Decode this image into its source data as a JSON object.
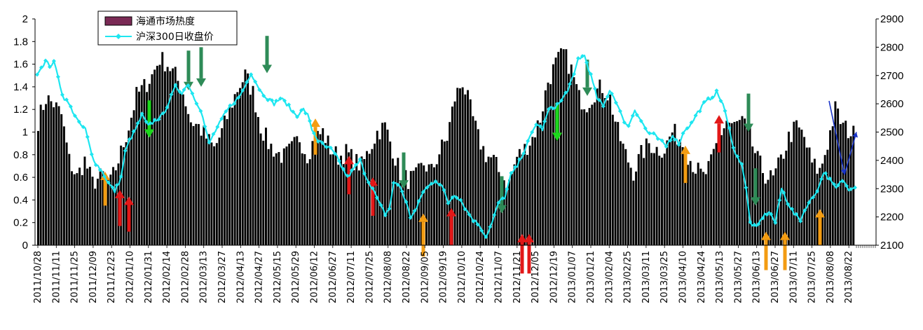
{
  "chart_data": {
    "type": "bar-line",
    "title": "",
    "legend": {
      "placement": "top-left",
      "entries": [
        {
          "label": "海通市场热度",
          "kind": "bar",
          "color": "#7a2a55"
        },
        {
          "label": "沪深300日收盘价",
          "kind": "line",
          "color": "#1ee6f0"
        }
      ]
    },
    "left_axis": {
      "min": 0,
      "max": 2,
      "ticks": [
        "0",
        "0.2",
        "0.4",
        "0.6",
        "0.8",
        "1",
        "1.2",
        "1.4",
        "1.6",
        "1.8",
        "2"
      ]
    },
    "right_axis": {
      "min": 2100,
      "max": 2900,
      "ticks": [
        "2100",
        "2200",
        "2300",
        "2400",
        "2500",
        "2600",
        "2700",
        "2800",
        "2900"
      ]
    },
    "x_labels": [
      "2011/10/28",
      "2011/11/11",
      "2011/11/25",
      "2011/12/09",
      "2011/12/23",
      "2012/01/10",
      "2012/01/31",
      "2012/02/14",
      "2012/02/28",
      "2012/03/13",
      "2012/03/27",
      "2012/04/13",
      "2012/04/27",
      "2012/05/15",
      "2012/05/29",
      "2012/06/12",
      "2012/06/27",
      "2012/07/11",
      "2012/07/25",
      "2012/08/08",
      "2012/08/22",
      "2012/09/05",
      "2012/09/19",
      "2012/10/10",
      "2012/10/24",
      "2012/11/07",
      "2012/11/21",
      "2012/12/05",
      "2012/12/19",
      "2013/01/07",
      "2013/01/21",
      "2013/02/04",
      "2013/02/25",
      "2013/03/11",
      "2013/03/25",
      "2013/04/10",
      "2013/04/24",
      "2013/05/13",
      "2013/05/27",
      "2013/06/13",
      "2013/06/27",
      "2013/07/11",
      "2013/07/25",
      "2013/08/08",
      "2013/08/22"
    ],
    "heat_anchors": [
      [
        0,
        1.1
      ],
      [
        3,
        1.3
      ],
      [
        6,
        1.25
      ],
      [
        9,
        1.15
      ],
      [
        12,
        0.75
      ],
      [
        15,
        0.6
      ],
      [
        18,
        0.75
      ],
      [
        21,
        0.55
      ],
      [
        25,
        0.62
      ],
      [
        28,
        0.55
      ],
      [
        32,
        0.82
      ],
      [
        35,
        1.05
      ],
      [
        38,
        1.32
      ],
      [
        41,
        1.4
      ],
      [
        44,
        1.5
      ],
      [
        47,
        1.65
      ],
      [
        50,
        1.6
      ],
      [
        53,
        1.5
      ],
      [
        56,
        1.35
      ],
      [
        59,
        1.1
      ],
      [
        62,
        1.05
      ],
      [
        65,
        0.95
      ],
      [
        68,
        0.85
      ],
      [
        71,
        1.0
      ],
      [
        74,
        1.2
      ],
      [
        77,
        1.38
      ],
      [
        80,
        1.5
      ],
      [
        83,
        1.35
      ],
      [
        86,
        1.05
      ],
      [
        89,
        0.9
      ],
      [
        92,
        0.82
      ],
      [
        95,
        0.78
      ],
      [
        98,
        0.85
      ],
      [
        101,
        0.95
      ],
      [
        104,
        0.8
      ],
      [
        107,
        0.95
      ],
      [
        110,
        1.0
      ],
      [
        113,
        0.85
      ],
      [
        116,
        0.78
      ],
      [
        119,
        0.82
      ],
      [
        122,
        0.75
      ],
      [
        125,
        0.7
      ],
      [
        128,
        0.85
      ],
      [
        131,
        1.0
      ],
      [
        134,
        1.05
      ],
      [
        137,
        0.85
      ],
      [
        140,
        0.62
      ],
      [
        143,
        0.58
      ],
      [
        146,
        0.6
      ],
      [
        149,
        0.72
      ],
      [
        152,
        0.65
      ],
      [
        155,
        0.82
      ],
      [
        158,
        0.95
      ],
      [
        161,
        1.3
      ],
      [
        164,
        1.45
      ],
      [
        167,
        1.2
      ],
      [
        170,
        0.95
      ],
      [
        173,
        0.8
      ],
      [
        176,
        0.75
      ],
      [
        179,
        0.6
      ],
      [
        182,
        0.55
      ],
      [
        185,
        0.78
      ],
      [
        188,
        0.85
      ],
      [
        191,
        0.95
      ],
      [
        194,
        1.12
      ],
      [
        197,
        1.45
      ],
      [
        200,
        1.6
      ],
      [
        203,
        1.7
      ],
      [
        206,
        1.55
      ],
      [
        209,
        1.3
      ],
      [
        212,
        1.25
      ],
      [
        215,
        1.35
      ],
      [
        218,
        1.4
      ],
      [
        221,
        1.3
      ],
      [
        224,
        1.0
      ],
      [
        227,
        0.8
      ],
      [
        230,
        0.65
      ],
      [
        233,
        0.8
      ],
      [
        236,
        0.9
      ],
      [
        239,
        0.85
      ],
      [
        242,
        0.85
      ],
      [
        245,
        1.0
      ],
      [
        248,
        0.95
      ],
      [
        251,
        0.8
      ],
      [
        254,
        0.68
      ],
      [
        257,
        0.6
      ],
      [
        260,
        0.72
      ],
      [
        263,
        0.95
      ],
      [
        266,
        1.1
      ],
      [
        269,
        1.05
      ],
      [
        272,
        1.1
      ],
      [
        275,
        0.95
      ],
      [
        278,
        0.75
      ],
      [
        281,
        0.62
      ],
      [
        284,
        0.58
      ],
      [
        287,
        0.75
      ],
      [
        290,
        0.95
      ],
      [
        293,
        1.05
      ],
      [
        296,
        0.95
      ],
      [
        299,
        0.72
      ],
      [
        302,
        0.65
      ],
      [
        305,
        0.9
      ],
      [
        308,
        1.2
      ],
      [
        311,
        1.05
      ],
      [
        315,
        0.98
      ]
    ],
    "price_anchors": [
      [
        0,
        2710
      ],
      [
        2,
        2730
      ],
      [
        4,
        2750
      ],
      [
        6,
        2735
      ],
      [
        8,
        2745
      ],
      [
        10,
        2700
      ],
      [
        12,
        2630
      ],
      [
        15,
        2600
      ],
      [
        18,
        2560
      ],
      [
        20,
        2530
      ],
      [
        23,
        2510
      ],
      [
        26,
        2420
      ],
      [
        28,
        2390
      ],
      [
        31,
        2360
      ],
      [
        34,
        2320
      ],
      [
        37,
        2290
      ],
      [
        40,
        2340
      ],
      [
        42,
        2430
      ],
      [
        44,
        2470
      ],
      [
        47,
        2510
      ],
      [
        50,
        2560
      ],
      [
        53,
        2520
      ],
      [
        56,
        2540
      ],
      [
        60,
        2560
      ],
      [
        63,
        2610
      ],
      [
        66,
        2660
      ],
      [
        69,
        2640
      ],
      [
        72,
        2670
      ],
      [
        75,
        2620
      ],
      [
        78,
        2580
      ],
      [
        80,
        2520
      ],
      [
        82,
        2460
      ],
      [
        84,
        2490
      ],
      [
        87,
        2530
      ],
      [
        90,
        2570
      ],
      [
        93,
        2600
      ],
      [
        96,
        2620
      ],
      [
        99,
        2660
      ],
      [
        102,
        2710
      ],
      [
        104,
        2680
      ],
      [
        107,
        2640
      ],
      [
        110,
        2620
      ],
      [
        113,
        2600
      ],
      [
        116,
        2620
      ],
      [
        119,
        2600
      ],
      [
        122,
        2570
      ],
      [
        124,
        2560
      ],
      [
        127,
        2580
      ],
      [
        129,
        2560
      ],
      [
        131,
        2510
      ],
      [
        134,
        2470
      ],
      [
        137,
        2450
      ],
      [
        140,
        2440
      ],
      [
        143,
        2410
      ],
      [
        145,
        2380
      ],
      [
        148,
        2340
      ],
      [
        151,
        2370
      ],
      [
        154,
        2400
      ],
      [
        157,
        2340
      ],
      [
        160,
        2300
      ],
      [
        163,
        2250
      ],
      [
        166,
        2210
      ],
      [
        168,
        2230
      ],
      [
        170,
        2320
      ],
      [
        173,
        2310
      ],
      [
        176,
        2250
      ],
      [
        178,
        2200
      ],
      [
        181,
        2230
      ],
      [
        184,
        2290
      ],
      [
        187,
        2310
      ],
      [
        190,
        2330
      ],
      [
        193,
        2310
      ],
      [
        196,
        2250
      ],
      [
        199,
        2280
      ],
      [
        202,
        2260
      ],
      [
        205,
        2220
      ],
      [
        208,
        2190
      ],
      [
        211,
        2170
      ],
      [
        214,
        2130
      ],
      [
        217,
        2180
      ],
      [
        220,
        2250
      ],
      [
        223,
        2270
      ],
      [
        226,
        2350
      ],
      [
        229,
        2380
      ],
      [
        232,
        2430
      ],
      [
        235,
        2480
      ],
      [
        238,
        2530
      ],
      [
        241,
        2510
      ],
      [
        244,
        2580
      ],
      [
        247,
        2590
      ],
      [
        250,
        2610
      ],
      [
        253,
        2650
      ],
      [
        256,
        2700
      ],
      [
        258,
        2760
      ],
      [
        261,
        2770
      ],
      [
        264,
        2700
      ],
      [
        267,
        2620
      ],
      [
        270,
        2590
      ],
      [
        273,
        2650
      ],
      [
        276,
        2610
      ],
      [
        279,
        2550
      ],
      [
        282,
        2520
      ],
      [
        285,
        2580
      ],
      [
        288,
        2540
      ],
      [
        291,
        2500
      ],
      [
        294,
        2490
      ],
      [
        297,
        2470
      ],
      [
        300,
        2450
      ],
      [
        303,
        2490
      ],
      [
        306,
        2460
      ],
      [
        309,
        2510
      ],
      [
        312,
        2530
      ],
      [
        315,
        2570
      ],
      [
        318,
        2600
      ],
      [
        321,
        2620
      ],
      [
        324,
        2640
      ],
      [
        327,
        2600
      ],
      [
        330,
        2510
      ],
      [
        333,
        2420
      ],
      [
        336,
        2390
      ],
      [
        338,
        2300
      ],
      [
        340,
        2180
      ],
      [
        343,
        2160
      ],
      [
        346,
        2200
      ],
      [
        349,
        2220
      ],
      [
        352,
        2180
      ],
      [
        355,
        2300
      ],
      [
        358,
        2250
      ],
      [
        361,
        2210
      ],
      [
        364,
        2190
      ],
      [
        367,
        2240
      ],
      [
        370,
        2270
      ],
      [
        373,
        2310
      ],
      [
        375,
        2360
      ],
      [
        378,
        2330
      ],
      [
        381,
        2300
      ],
      [
        384,
        2330
      ],
      [
        387,
        2300
      ],
      [
        390,
        2310
      ]
    ],
    "price_bars": 391,
    "projection": {
      "color": "#1a35c8",
      "points": [
        [
          1183,
          2610
        ],
        [
          1205,
          2350
        ],
        [
          1222,
          2500
        ]
      ]
    },
    "arrows": [
      {
        "x": 150,
        "dir": "up",
        "color": "#f39c12",
        "from": 0.35,
        "to": 0.65
      },
      {
        "x": 171,
        "dir": "up",
        "color": "#e31818",
        "from": 0.17,
        "to": 0.49
      },
      {
        "x": 184,
        "dir": "up",
        "color": "#e31818",
        "from": 0.12,
        "to": 0.43
      },
      {
        "x": 213,
        "dir": "down",
        "color": "#1cd81c",
        "from": 1.28,
        "to": 0.95
      },
      {
        "x": 269,
        "dir": "down",
        "color": "#2e8b57",
        "from": 1.72,
        "to": 1.37
      },
      {
        "x": 287,
        "dir": "down",
        "color": "#2e8b57",
        "from": 1.75,
        "to": 1.4
      },
      {
        "x": 381,
        "dir": "down",
        "color": "#2e8b57",
        "from": 1.85,
        "to": 1.52
      },
      {
        "x": 450,
        "dir": "up",
        "color": "#f39c12",
        "from": 0.8,
        "to": 1.12
      },
      {
        "x": 498,
        "dir": "up",
        "color": "#e31818",
        "from": 0.45,
        "to": 0.79
      },
      {
        "x": 532,
        "dir": "up",
        "color": "#e31818",
        "from": 0.26,
        "to": 0.6
      },
      {
        "x": 576,
        "dir": "down",
        "color": "#2e8b57",
        "from": 0.82,
        "to": 0.5
      },
      {
        "x": 604,
        "dir": "up",
        "color": "#f39c12",
        "from": -0.1,
        "to": 0.28
      },
      {
        "x": 644,
        "dir": "up",
        "color": "#e31818",
        "from": 0.0,
        "to": 0.33
      },
      {
        "x": 716,
        "dir": "down",
        "color": "#2e8b57",
        "from": 0.61,
        "to": 0.28
      },
      {
        "x": 745,
        "dir": "up",
        "color": "#e31818",
        "from": -0.25,
        "to": 0.1
      },
      {
        "x": 755,
        "dir": "up",
        "color": "#e31818",
        "from": -0.25,
        "to": 0.1
      },
      {
        "x": 795,
        "dir": "down",
        "color": "#1cd81c",
        "from": 1.26,
        "to": 0.92
      },
      {
        "x": 838,
        "dir": "down",
        "color": "#2e8b57",
        "from": 1.64,
        "to": 1.32
      },
      {
        "x": 978,
        "dir": "up",
        "color": "#f39c12",
        "from": 0.55,
        "to": 0.88
      },
      {
        "x": 1026,
        "dir": "up",
        "color": "#e31818",
        "from": 0.82,
        "to": 1.15
      },
      {
        "x": 1068,
        "dir": "down",
        "color": "#2e8b57",
        "from": 1.34,
        "to": 1.0
      },
      {
        "x": 1078,
        "dir": "down",
        "color": "#2e8b57",
        "from": 0.68,
        "to": 0.35
      },
      {
        "x": 1093,
        "dir": "up",
        "color": "#f39c12",
        "from": -0.22,
        "to": 0.12
      },
      {
        "x": 1120,
        "dir": "up",
        "color": "#f39c12",
        "from": -0.22,
        "to": 0.12
      },
      {
        "x": 1170,
        "dir": "up",
        "color": "#f39c12",
        "from": 0.0,
        "to": 0.32
      }
    ]
  }
}
